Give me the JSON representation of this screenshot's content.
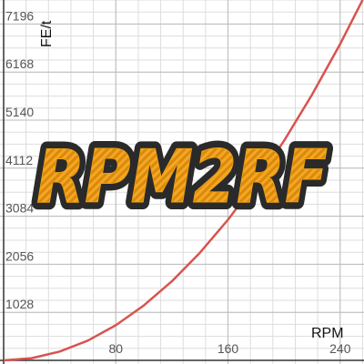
{
  "chart_data": {
    "type": "line",
    "xlabel": "RPM",
    "ylabel": "FE/t",
    "xlim": [
      0,
      257
    ],
    "ylim": [
      0,
      7710
    ],
    "x_ticks": [
      80,
      160,
      240
    ],
    "y_ticks": [
      1028,
      2056,
      3084,
      4112,
      5140,
      6168,
      7196
    ],
    "grid": true,
    "series": [
      {
        "color": "#d9534f",
        "x": [
          0,
          20,
          40,
          60,
          80,
          100,
          120,
          140,
          160,
          180,
          200,
          220,
          240,
          256
        ],
        "y": [
          0,
          47,
          188,
          423,
          752,
          1175,
          1692,
          2303,
          3008,
          3807,
          4700,
          5687,
          6768,
          7711
        ]
      }
    ]
  },
  "logo": {
    "text": "RPM2RF",
    "fill_color": "#f0a010",
    "outline_color": "#2a2a2a"
  },
  "colors": {
    "grid_major": "#bbbbbb",
    "grid_minor": "#dddddd",
    "axis": "#333333"
  }
}
